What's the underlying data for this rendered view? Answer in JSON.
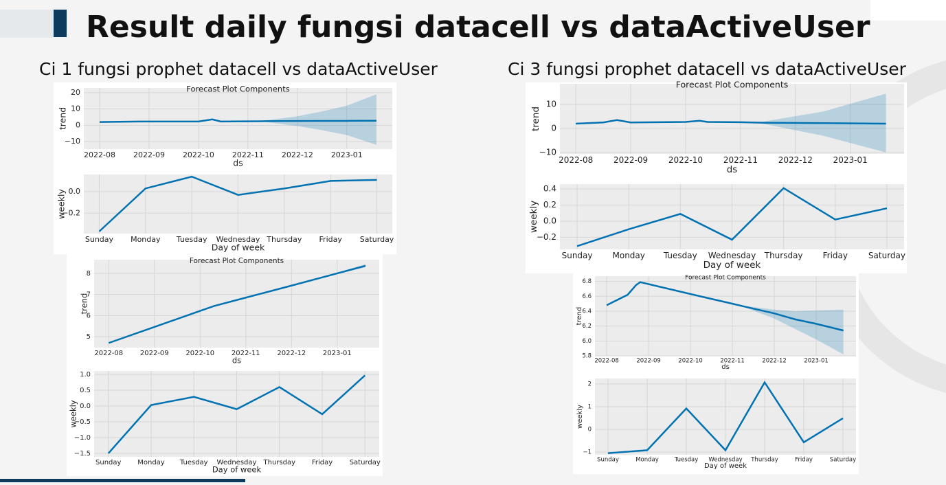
{
  "slide": {
    "title": "Result daily fungsi datacell vs dataActiveUser",
    "subtitles": [
      "Ci 1 fungsi prophet datacell vs dataActiveUser",
      "Ci 3 fungsi prophet datacell vs dataActiveUser"
    ]
  },
  "chart_data": [
    {
      "type": "line",
      "title": "Forecast Plot Components",
      "x_label": "ds",
      "y_label": "trend",
      "color": "#0072b2",
      "grid": true,
      "x": [
        0,
        0.8,
        2.0,
        2.28,
        2.45,
        3.0,
        3.33,
        4.0,
        4.5,
        5.0,
        5.6
      ],
      "values": [
        2.0,
        2.3,
        2.3,
        3.6,
        2.3,
        2.4,
        2.5,
        2.6,
        2.7,
        2.7,
        2.8
      ],
      "upper": [
        2.3,
        2.6,
        2.6,
        3.9,
        2.6,
        2.7,
        2.9,
        5.5,
        8.5,
        12,
        19
      ],
      "lower": [
        1.7,
        2.0,
        2.0,
        3.3,
        2.0,
        2.1,
        2.1,
        -0.5,
        -3,
        -6,
        -12
      ],
      "xlim": [
        -0.32,
        5.92
      ],
      "xticks": [
        {
          "value": 0,
          "label": "2022-08"
        },
        {
          "value": 1,
          "label": "2022-09"
        },
        {
          "value": 2,
          "label": "2022-10"
        },
        {
          "value": 3,
          "label": "2022-11"
        },
        {
          "value": 4,
          "label": "2022-12"
        },
        {
          "value": 5,
          "label": "2023-01"
        }
      ],
      "ylim": [
        -14.6,
        22.9
      ],
      "yticks": [
        {
          "value": -10,
          "label": "−10"
        },
        0,
        10,
        20
      ]
    },
    {
      "type": "line",
      "x_label": "Day of week",
      "y_label": "weekly",
      "color": "#0072b2",
      "grid": true,
      "categories": [
        "Sunday",
        "Monday",
        "Tuesday",
        "Wednesday",
        "Thursday",
        "Friday",
        "Saturday"
      ],
      "values": [
        -0.37,
        0.03,
        0.14,
        -0.03,
        0.03,
        0.1,
        0.11
      ],
      "ylim": [
        -0.39,
        0.16
      ],
      "yticks": [
        {
          "value": -0.2,
          "label": "−0.2"
        },
        {
          "value": 0,
          "label": "0.0"
        }
      ]
    },
    {
      "type": "line",
      "title": "Forecast Plot Components",
      "x_label": "ds",
      "y_label": "trend",
      "color": "#0072b2",
      "grid": true,
      "x": [
        0,
        0.5,
        0.75,
        1.0,
        2.0,
        2.25,
        2.4,
        3.0,
        3.4,
        4.5,
        5.65
      ],
      "values": [
        2.0,
        2.5,
        3.5,
        2.5,
        2.7,
        3.2,
        2.7,
        2.6,
        2.4,
        2.2,
        2.0
      ],
      "upper": [
        2.3,
        2.8,
        3.8,
        2.8,
        3.0,
        3.5,
        3.0,
        2.9,
        2.8,
        7,
        14.5
      ],
      "lower": [
        1.7,
        2.2,
        3.2,
        2.2,
        2.4,
        2.9,
        2.4,
        2.3,
        2.0,
        -3,
        -10
      ],
      "xlim": [
        -0.29,
        5.98
      ],
      "xticks": [
        {
          "value": 0,
          "label": "2022-08"
        },
        {
          "value": 1,
          "label": "2022-09"
        },
        {
          "value": 2,
          "label": "2022-10"
        },
        {
          "value": 3,
          "label": "2022-11"
        },
        {
          "value": 4,
          "label": "2022-12"
        },
        {
          "value": 5,
          "label": "2023-01"
        }
      ],
      "ylim": [
        -10.6,
        18.6
      ],
      "yticks": [
        {
          "value": -10,
          "label": "−10"
        },
        0,
        10
      ]
    },
    {
      "type": "line",
      "x_label": "Day of week",
      "y_label": "weekly",
      "color": "#0072b2",
      "grid": true,
      "categories": [
        "Sunday",
        "Monday",
        "Tuesday",
        "Wednesday",
        "Thursday",
        "Friday",
        "Saturday"
      ],
      "values": [
        -0.31,
        -0.1,
        0.09,
        -0.23,
        0.41,
        0.02,
        0.16
      ],
      "ylim": [
        -0.35,
        0.46
      ],
      "yticks": [
        {
          "value": -0.2,
          "label": "−0.2"
        },
        {
          "value": 0,
          "label": "0.0"
        },
        {
          "value": 0.2,
          "label": "0.2"
        },
        {
          "value": 0.4,
          "label": "0.4"
        }
      ]
    },
    {
      "type": "line",
      "title": "Forecast Plot Components",
      "x_label": "ds",
      "y_label": "trend",
      "color": "#0072b2",
      "grid": true,
      "x": [
        0,
        1,
        2,
        2.3,
        3,
        4,
        5,
        5.62
      ],
      "values": [
        4.7,
        5.46,
        6.22,
        6.45,
        6.85,
        7.42,
        8.0,
        8.36
      ],
      "upper": [
        4.71,
        5.47,
        6.23,
        6.46,
        6.86,
        7.43,
        8.03,
        8.44
      ],
      "lower": [
        4.69,
        5.45,
        6.21,
        6.44,
        6.84,
        7.41,
        7.97,
        8.29
      ],
      "xlim": [
        -0.32,
        5.92
      ],
      "xticks": [
        {
          "value": 0,
          "label": "2022-08"
        },
        {
          "value": 1,
          "label": "2022-09"
        },
        {
          "value": 2,
          "label": "2022-10"
        },
        {
          "value": 3,
          "label": "2022-11"
        },
        {
          "value": 4,
          "label": "2022-12"
        },
        {
          "value": 5,
          "label": "2023-01"
        }
      ],
      "ylim": [
        4.48,
        8.65
      ],
      "yticks": [
        5,
        6,
        7,
        8
      ]
    },
    {
      "type": "line",
      "x_label": "Day of week",
      "y_label": "weekly",
      "color": "#0072b2",
      "grid": true,
      "categories": [
        "Sunday",
        "Monday",
        "Tuesday",
        "Wednesday",
        "Thursday",
        "Friday",
        "Saturday"
      ],
      "values": [
        -1.5,
        0.03,
        0.29,
        -0.1,
        0.6,
        -0.26,
        0.97
      ],
      "ylim": [
        -1.61,
        1.11
      ],
      "yticks": [
        {
          "value": -1.5,
          "label": "−1.5"
        },
        {
          "value": -1,
          "label": "−1.0"
        },
        {
          "value": -0.5,
          "label": "−0.5"
        },
        {
          "value": 0,
          "label": "0.0"
        },
        {
          "value": 0.5,
          "label": "0.5"
        },
        {
          "value": 1,
          "label": "1.0"
        }
      ]
    },
    {
      "type": "line",
      "title": "Forecast Plot Components",
      "x_label": "ds",
      "y_label": "trend",
      "color": "#0072b2",
      "grid": true,
      "x": [
        0,
        0.5,
        0.7,
        0.8,
        2,
        3,
        3.3,
        4,
        4.5,
        5,
        5.65
      ],
      "values": [
        6.48,
        6.62,
        6.75,
        6.79,
        6.63,
        6.5,
        6.46,
        6.37,
        6.29,
        6.23,
        6.14
      ],
      "upper": [
        6.49,
        6.63,
        6.76,
        6.8,
        6.64,
        6.51,
        6.47,
        6.42,
        6.4,
        6.41,
        6.42
      ],
      "lower": [
        6.47,
        6.61,
        6.74,
        6.78,
        6.62,
        6.49,
        6.45,
        6.3,
        6.16,
        6.02,
        5.82
      ],
      "xlim": [
        -0.28,
        5.95
      ],
      "xticks": [
        {
          "value": 0,
          "label": "2022-08"
        },
        {
          "value": 1,
          "label": "2022-09"
        },
        {
          "value": 2,
          "label": "2022-10"
        },
        {
          "value": 3,
          "label": "2022-11"
        },
        {
          "value": 4,
          "label": "2022-12"
        },
        {
          "value": 5,
          "label": "2023-01"
        }
      ],
      "ylim": [
        5.8,
        6.87
      ],
      "yticks": [
        {
          "value": 5.8,
          "label": "5.8"
        },
        {
          "value": 6,
          "label": "6.0"
        },
        {
          "value": 6.2,
          "label": "6.2"
        },
        {
          "value": 6.4,
          "label": "6.4"
        },
        {
          "value": 6.6,
          "label": "6.6"
        },
        {
          "value": 6.8,
          "label": "6.8"
        }
      ]
    },
    {
      "type": "line",
      "x_label": "Day of week",
      "y_label": "weekly",
      "color": "#0072b2",
      "grid": true,
      "categories": [
        "Sunday",
        "Monday",
        "Tuesday",
        "Wednesday",
        "Thursday",
        "Friday",
        "Saturday"
      ],
      "values": [
        -1.05,
        -0.92,
        0.92,
        -0.92,
        2.07,
        -0.57,
        0.49
      ],
      "ylim": [
        -1.12,
        2.24
      ],
      "yticks": [
        {
          "value": -1,
          "label": "−1"
        },
        0,
        1,
        2
      ]
    }
  ]
}
